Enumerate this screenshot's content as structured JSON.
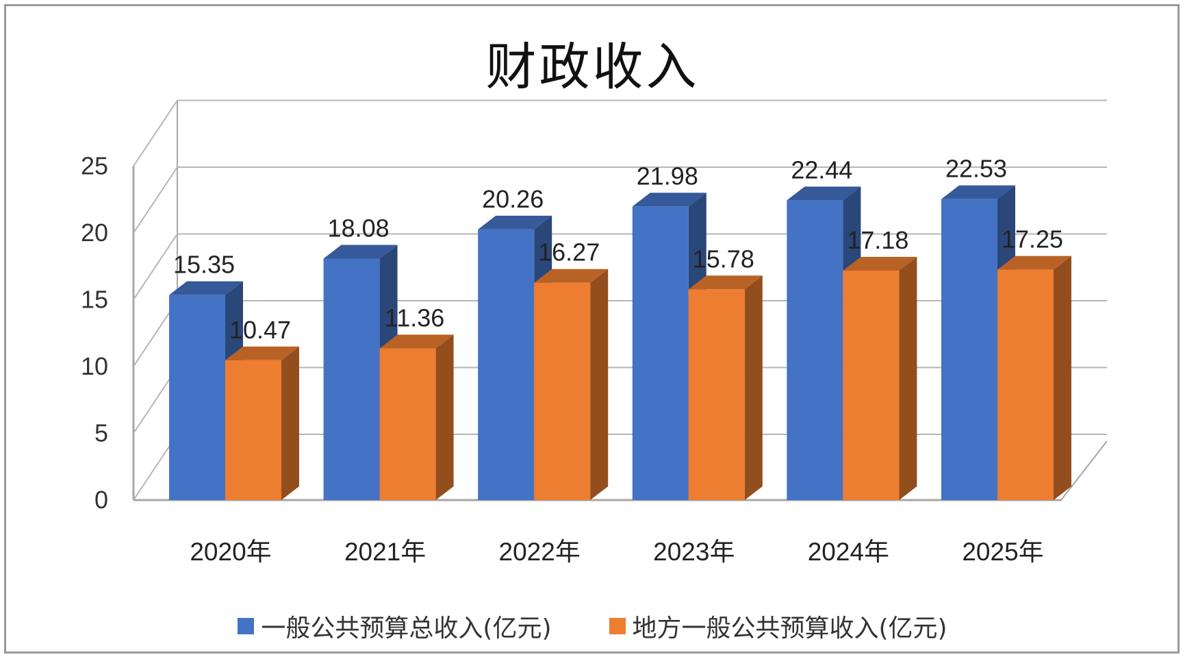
{
  "chart_data": {
    "type": "bar",
    "title": "财政收入",
    "categories": [
      "2020年",
      "2021年",
      "2022年",
      "2023年",
      "2024年",
      "2025年"
    ],
    "series": [
      {
        "name": "一般公共预算总收入(亿元)",
        "values": [
          15.35,
          18.08,
          20.26,
          21.98,
          22.44,
          22.53
        ],
        "color": "#4472C4"
      },
      {
        "name": "地方一般公共预算收入(亿元)",
        "values": [
          10.47,
          11.36,
          16.27,
          15.78,
          17.18,
          17.25
        ],
        "color": "#ED7D31"
      }
    ],
    "ylim": [
      0,
      25
    ],
    "yticks": [
      "0",
      "5",
      "10",
      "15",
      "20",
      "25"
    ],
    "grid": true,
    "style": "3d-clustered-column",
    "legend_position": "bottom"
  }
}
